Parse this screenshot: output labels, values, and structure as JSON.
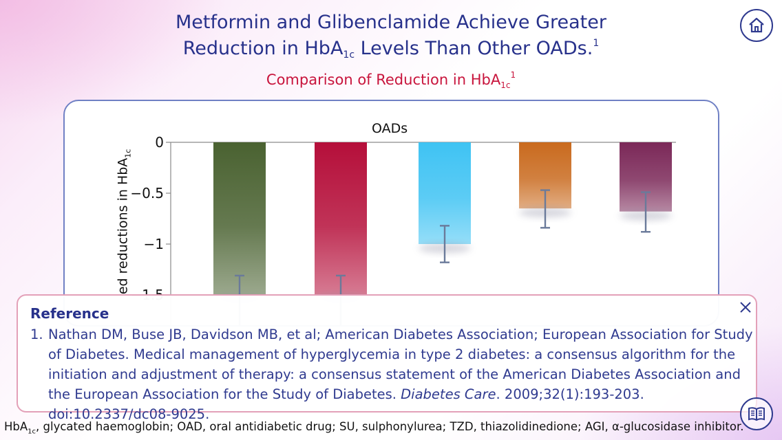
{
  "title": {
    "line1": "Metformin and Glibenclamide Achieve Greater",
    "line2_pre": "Reduction in HbA",
    "line2_sub": "1c",
    "line2_post": " Levels Than Other OADs.",
    "line2_sup": "1"
  },
  "subtitle": {
    "pre": "Comparison of Reduction in HbA",
    "sub": "1c",
    "sup": "1"
  },
  "chart_data": {
    "type": "bar",
    "title": "OADs",
    "ylabel_pre": "ed reductions in HbA",
    "ylabel_sub": "1c",
    "yticks": [
      "0",
      "−0.5",
      "−1",
      "−1.5"
    ],
    "ylim": [
      -1.5,
      0
    ],
    "values": [
      -1.5,
      -1.5,
      -1.0,
      -0.65,
      -0.68
    ],
    "error_low": [
      -1.9,
      -1.9,
      -1.18,
      -0.84,
      -0.88
    ],
    "error_high": [
      -1.31,
      -1.31,
      -0.82,
      -0.47,
      -0.49
    ],
    "colors": [
      "#4a6231",
      "#b50f3a",
      "#3fc3f3",
      "#c96a1e",
      "#7b2858"
    ]
  },
  "reference": {
    "heading": "Reference",
    "number": "1.",
    "text_main": "Nathan DM, Buse JB, Davidson MB, et al; American Diabetes Association; European Association for Study of Diabetes. Medical management of hyperglycemia in type 2 diabetes: a consensus algorithm for the initiation and adjustment of therapy: a consensus statement of the American Diabetes Association and the European Association for the Study of Diabetes. ",
    "journal": "Diabetes Care",
    "text_tail": ". 2009;32(1):193-203. doi:10.2337/dc08-9025."
  },
  "footnote": {
    "pre": "HbA",
    "sub": "1c",
    "post": ", glycated haemoglobin; OAD, oral antidiabetic drug; SU, sulphonylurea; TZD, thiazolidinedione; AGI, α-glucosidase inhibitor."
  },
  "icons": {
    "home": "home-icon",
    "close": "close-icon",
    "book": "book-icon"
  }
}
